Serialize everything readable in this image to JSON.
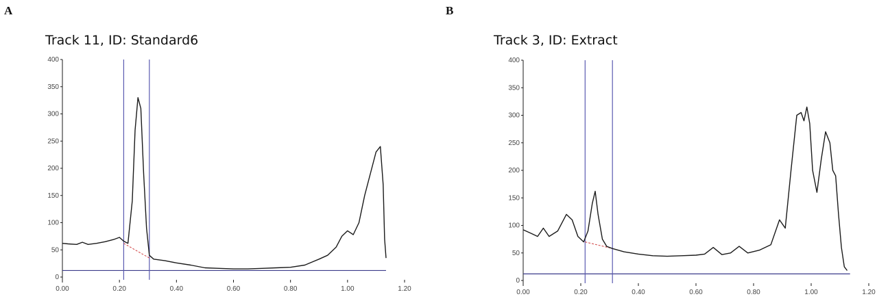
{
  "panels": [
    {
      "letter": "A",
      "title": "Track 11, ID: Standard6"
    },
    {
      "letter": "B",
      "title": "Track 3, ID: Extract"
    }
  ],
  "colors": {
    "trace": "#1a1a1a",
    "axis": "#3a3a8a",
    "marker": "#5a5ab0",
    "baseline": "#d04040",
    "tick_label": "#444444"
  },
  "chart_data": [
    {
      "type": "line",
      "title": "Track 11, ID: Standard6",
      "xlabel": "",
      "ylabel": "",
      "xlim": [
        0,
        1.2
      ],
      "ylim": [
        0,
        400
      ],
      "xticks": [
        "0.00",
        "0.20",
        "0.40",
        "0.60",
        "0.80",
        "1.00",
        "1.20"
      ],
      "yticks": [
        "0",
        "50",
        "100",
        "150",
        "200",
        "250",
        "300",
        "350",
        "400"
      ],
      "x": [
        0.0,
        0.02,
        0.05,
        0.07,
        0.09,
        0.12,
        0.15,
        0.18,
        0.2,
        0.215,
        0.23,
        0.245,
        0.255,
        0.265,
        0.275,
        0.285,
        0.295,
        0.305,
        0.32,
        0.36,
        0.4,
        0.45,
        0.5,
        0.55,
        0.6,
        0.65,
        0.7,
        0.75,
        0.8,
        0.85,
        0.9,
        0.93,
        0.96,
        0.98,
        1.0,
        1.02,
        1.04,
        1.06,
        1.08,
        1.1,
        1.115,
        1.125,
        1.13,
        1.135
      ],
      "y": [
        62,
        61,
        60,
        64,
        60,
        62,
        65,
        69,
        73,
        66,
        62,
        140,
        270,
        330,
        310,
        190,
        90,
        40,
        33,
        30,
        26,
        22,
        17,
        16,
        15,
        15,
        16,
        17,
        18,
        22,
        33,
        40,
        55,
        75,
        85,
        78,
        100,
        150,
        190,
        230,
        240,
        170,
        70,
        35
      ],
      "markers": [
        0.215,
        0.305
      ],
      "baseline_y": 12,
      "baseline_segment": {
        "x": [
          0.215,
          0.305
        ],
        "y": [
          62,
          35
        ]
      }
    },
    {
      "type": "line",
      "title": "Track 3, ID: Extract",
      "xlabel": "",
      "ylabel": "",
      "xlim": [
        0,
        1.2
      ],
      "ylim": [
        0,
        400
      ],
      "xticks": [
        "0.00",
        "0.20",
        "0.40",
        "0.60",
        "0.80",
        "1.00",
        "1.20"
      ],
      "yticks": [
        "0",
        "50",
        "100",
        "150",
        "200",
        "250",
        "300",
        "350",
        "400"
      ],
      "x": [
        0.0,
        0.03,
        0.05,
        0.07,
        0.09,
        0.12,
        0.15,
        0.17,
        0.19,
        0.21,
        0.225,
        0.24,
        0.25,
        0.26,
        0.275,
        0.29,
        0.31,
        0.35,
        0.4,
        0.45,
        0.5,
        0.55,
        0.6,
        0.63,
        0.66,
        0.69,
        0.72,
        0.75,
        0.78,
        0.82,
        0.86,
        0.89,
        0.91,
        0.93,
        0.95,
        0.965,
        0.975,
        0.985,
        0.995,
        1.005,
        1.02,
        1.035,
        1.05,
        1.065,
        1.075,
        1.085,
        1.095,
        1.105,
        1.115,
        1.125
      ],
      "y": [
        92,
        85,
        80,
        95,
        80,
        90,
        120,
        110,
        80,
        70,
        90,
        140,
        162,
        120,
        75,
        62,
        58,
        52,
        48,
        45,
        44,
        45,
        46,
        48,
        60,
        47,
        50,
        62,
        50,
        55,
        65,
        110,
        95,
        200,
        300,
        305,
        290,
        315,
        285,
        200,
        160,
        220,
        270,
        250,
        200,
        190,
        120,
        60,
        25,
        18
      ],
      "markers": [
        0.215,
        0.31
      ],
      "baseline_y": 12,
      "baseline_segment": {
        "x": [
          0.215,
          0.31
        ],
        "y": [
          70,
          58
        ]
      }
    }
  ]
}
